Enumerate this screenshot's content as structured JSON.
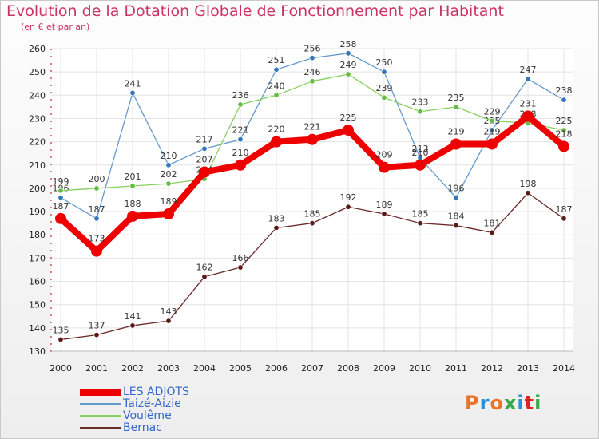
{
  "title": "Evolution de la Dotation Globale de Fonctionnement par Habitant",
  "subtitle": "(en € et par an)",
  "logo": {
    "text": "Proxiti",
    "colors": [
      "#e8742a",
      "#2a8fd8",
      "#e8742a",
      "#3aa94a",
      "#2a8fd8",
      "#e02020",
      "#3aa94a"
    ]
  },
  "chart_data": {
    "type": "line",
    "categories": [
      "2000",
      "2001",
      "2002",
      "2003",
      "2004",
      "2005",
      "2006",
      "2007",
      "2008",
      "2009",
      "2010",
      "2011",
      "2012",
      "2013",
      "2014"
    ],
    "ylim": [
      130,
      260
    ],
    "yticks": [
      130,
      140,
      150,
      160,
      170,
      180,
      190,
      200,
      210,
      220,
      230,
      240,
      250,
      260
    ],
    "title": "Evolution de la Dotation Globale de Fonctionnement par Habitant",
    "xlabel": "",
    "ylabel": "(en € et par an)",
    "legend_position": "bottom-left",
    "series": [
      {
        "name": "Taizé-Aizie",
        "color": "#6699cc",
        "marker": "#3377bb",
        "values": [
          196,
          187,
          241,
          210,
          217,
          221,
          251,
          256,
          258,
          250,
          213,
          196,
          225,
          247,
          238
        ]
      },
      {
        "name": "Voulême",
        "color": "#88d060",
        "marker": "#66bb44",
        "values": [
          199,
          200,
          201,
          202,
          204,
          236,
          240,
          246,
          249,
          239,
          233,
          235,
          229,
          228,
          225
        ]
      },
      {
        "name": "Bernac",
        "color": "#6b2a2a",
        "marker": "#5a1a1a",
        "values": [
          135,
          137,
          141,
          143,
          162,
          166,
          183,
          185,
          192,
          189,
          185,
          184,
          181,
          198,
          187
        ]
      },
      {
        "name": "LES ADJOTS",
        "color": "#ee0000",
        "marker": "#ee0000",
        "values": [
          187,
          173,
          188,
          189,
          207,
          210,
          220,
          221,
          225,
          209,
          210,
          219,
          219,
          231,
          218
        ]
      }
    ],
    "legend_order": [
      "LES ADJOTS",
      "Taizé-Aizie",
      "Voulême",
      "Bernac"
    ]
  }
}
